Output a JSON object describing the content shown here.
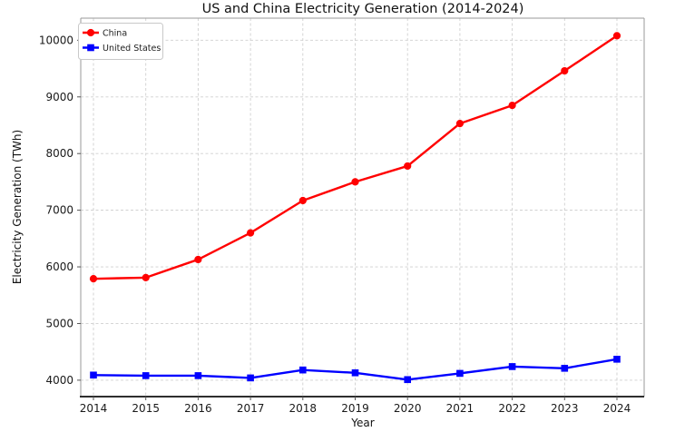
{
  "chart_data": {
    "type": "line",
    "title": "US and China Electricity Generation (2014-2024)",
    "xlabel": "Year",
    "ylabel": "Electricity Generation (TWh)",
    "x": [
      2014,
      2015,
      2016,
      2017,
      2018,
      2019,
      2020,
      2021,
      2022,
      2023,
      2024
    ],
    "series": [
      {
        "name": "China",
        "color": "#ff0000",
        "marker": "circle",
        "values": [
          5790,
          5810,
          6130,
          6600,
          7170,
          7500,
          7780,
          8530,
          8850,
          9460,
          10080
        ]
      },
      {
        "name": "United States",
        "color": "#0000ff",
        "marker": "square",
        "values": [
          4090,
          4080,
          4080,
          4040,
          4180,
          4130,
          4010,
          4120,
          4240,
          4210,
          4370
        ]
      }
    ],
    "ylim": [
      3710,
      10390
    ],
    "yticks": [
      4000,
      5000,
      6000,
      7000,
      8000,
      9000,
      10000
    ],
    "grid": "dashed",
    "legend_position": "upper-left"
  },
  "colors": {
    "background": "#ffffff",
    "grid": "#cfcfcf",
    "spine": "#9a9a9a",
    "axis_bottom": "#2e2e2e",
    "tick": "#555555",
    "tick_label": "#1a1a1a",
    "legend_border": "#c9c9c9",
    "china": "#ff0000",
    "united_states": "#0000ff"
  }
}
